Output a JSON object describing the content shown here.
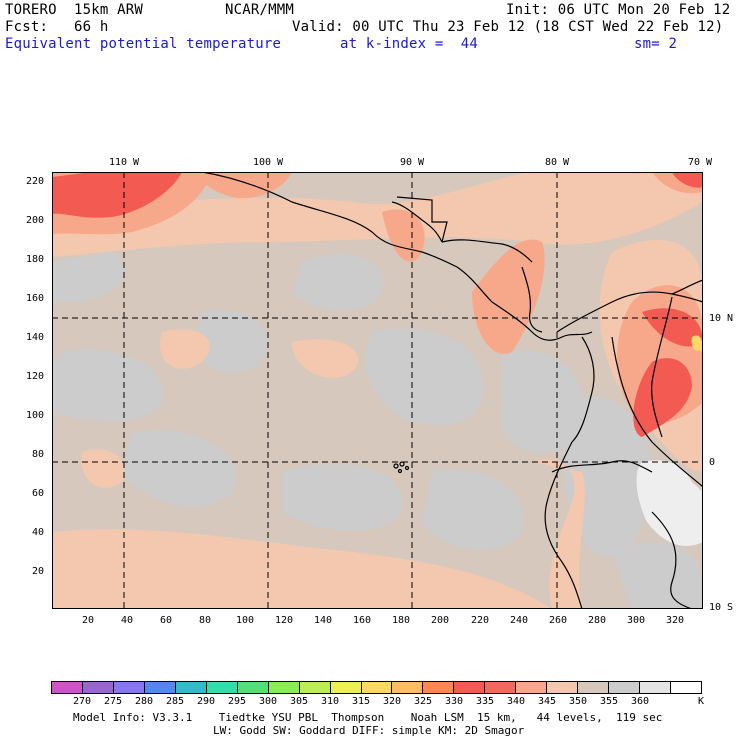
{
  "header": {
    "line1_left": "TORERO  15km ARW",
    "line1_mid": "NCAR/MMM",
    "line1_right": "Init: 06 UTC Mon 20 Feb 12",
    "line2_left": "Fcst:   66 h",
    "line2_right": "Valid: 00 UTC Thu 23 Feb 12 (18 CST Wed 22 Feb 12)",
    "line3_left": "Equivalent potential temperature",
    "line3_mid": "at k-index =  44",
    "line3_right": "sm= 2"
  },
  "map": {
    "x_ticks": [
      "20",
      "40",
      "60",
      "80",
      "100",
      "120",
      "140",
      "160",
      "180",
      "200",
      "220",
      "240",
      "260",
      "280",
      "300",
      "320"
    ],
    "y_ticks": [
      "220",
      "200",
      "180",
      "160",
      "140",
      "120",
      "100",
      "80",
      "60",
      "40",
      "20"
    ],
    "lon_labels": [
      "110 W",
      "100 W",
      "90 W",
      "80 W",
      "70 W"
    ],
    "lat_labels": [
      "10 N",
      "0",
      "10 S"
    ],
    "colors": {
      "base": "#d6c8bc",
      "warm": "#f4c8ae",
      "orange": "#f8a88a",
      "red": "#f25a52",
      "cool": "#cccccc",
      "white": "#eeeeee",
      "yellow": "#ffd866"
    }
  },
  "colorbar": {
    "colors": [
      "#cc55cc",
      "#9966cc",
      "#8877ee",
      "#5588ee",
      "#33bbcc",
      "#33ddaa",
      "#55dd77",
      "#88ee55",
      "#bbee55",
      "#eeee55",
      "#ffd866",
      "#ffbb66",
      "#ff8855",
      "#f25a52",
      "#f26a5a",
      "#f8a88a",
      "#f4c8ae",
      "#d6c8bc",
      "#cccccc",
      "#e4e4e4",
      "#ffffff"
    ],
    "labels": [
      "270",
      "275",
      "280",
      "285",
      "290",
      "295",
      "300",
      "305",
      "310",
      "315",
      "320",
      "325",
      "330",
      "335",
      "340",
      "345",
      "350",
      "355",
      "360"
    ],
    "unit": "K"
  },
  "footer": {
    "line1": "Model Info: V3.3.1    Tiedtke YSU PBL  Thompson    Noah LSM  15 km,   44 levels,  119 sec",
    "line2": "LW: Godd SW: Goddard DIFF: simple KM: 2D Smagor"
  }
}
